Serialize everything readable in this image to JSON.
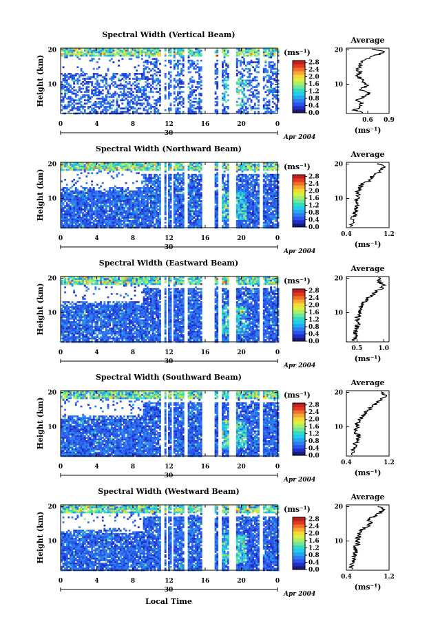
{
  "figure": {
    "xlabel": "Local Time",
    "colorbar_unit": "(ms⁻¹)",
    "avg_title": "Average",
    "avg_xlabel": "(ms⁻¹)",
    "date_day": "30",
    "date_month_year": "Apr 2004"
  },
  "colorbar": {
    "ticks": [
      "0.0",
      "0.4",
      "0.8",
      "1.2",
      "1.6",
      "2.0",
      "2.4",
      "2.8"
    ],
    "range": [
      0,
      2.9
    ],
    "colors": [
      "#1a1a6e",
      "#1f2fc8",
      "#2a55e8",
      "#2f7df0",
      "#27a7ee",
      "#22ccea",
      "#33dcc0",
      "#6fe69a",
      "#a8ee6a",
      "#d8f040",
      "#f4d838",
      "#f6a832",
      "#f07028",
      "#e03a22",
      "#c01e1e"
    ]
  },
  "chart_data": [
    {
      "type": "heatmap",
      "title": "Spectral Width (Vertical Beam)",
      "ylabel": "Height (km)",
      "xlim": [
        0,
        24
      ],
      "ylim": [
        1.5,
        20.5
      ],
      "x_ticks": [
        "0",
        "4",
        "8",
        "12",
        "16",
        "20",
        "0"
      ],
      "y_ticks": [
        "10",
        "20"
      ],
      "average": {
        "xlim": [
          0.3,
          0.9
        ],
        "x_ticks": [
          "0.6",
          "0.9"
        ],
        "y_ticks": [
          "10",
          "20"
        ],
        "profile": [
          [
            1.8,
            0.55
          ],
          [
            2.5,
            0.42
          ],
          [
            3.5,
            0.5
          ],
          [
            4.5,
            0.52
          ],
          [
            5.5,
            0.44
          ],
          [
            6.5,
            0.56
          ],
          [
            7.5,
            0.62
          ],
          [
            8.5,
            0.5
          ],
          [
            9.5,
            0.58
          ],
          [
            10.5,
            0.55
          ],
          [
            11.5,
            0.5
          ],
          [
            12.5,
            0.45
          ],
          [
            13.5,
            0.5
          ],
          [
            14.5,
            0.45
          ],
          [
            15.5,
            0.52
          ],
          [
            16.5,
            0.5
          ],
          [
            17.5,
            0.62
          ],
          [
            18.5,
            0.72
          ],
          [
            19.5,
            0.85
          ],
          [
            20.2,
            0.66
          ]
        ]
      }
    },
    {
      "type": "heatmap",
      "title": "Spectral Width (Northward Beam)",
      "ylabel": "Height (km)",
      "xlim": [
        0,
        24
      ],
      "ylim": [
        1.5,
        20.5
      ],
      "x_ticks": [
        "0",
        "4",
        "8",
        "12",
        "16",
        "20",
        "0"
      ],
      "y_ticks": [
        "10",
        "20"
      ],
      "average": {
        "xlim": [
          0.4,
          1.2
        ],
        "x_ticks": [
          "0.4",
          "1.2"
        ],
        "y_ticks": [
          "10",
          "20"
        ],
        "profile": [
          [
            1.8,
            0.48
          ],
          [
            3,
            0.5
          ],
          [
            4,
            0.52
          ],
          [
            5,
            0.55
          ],
          [
            6,
            0.56
          ],
          [
            7,
            0.58
          ],
          [
            8,
            0.6
          ],
          [
            9,
            0.58
          ],
          [
            10,
            0.6
          ],
          [
            11,
            0.62
          ],
          [
            12,
            0.6
          ],
          [
            13,
            0.64
          ],
          [
            14,
            0.68
          ],
          [
            15,
            0.82
          ],
          [
            16,
            0.85
          ],
          [
            17,
            0.95
          ],
          [
            18,
            1.05
          ],
          [
            19,
            1.1
          ],
          [
            20.2,
            1.0
          ]
        ]
      }
    },
    {
      "type": "heatmap",
      "title": "Spectral Width (Eastward Beam)",
      "ylabel": "Height (km)",
      "xlim": [
        0,
        24
      ],
      "ylim": [
        1.5,
        20.5
      ],
      "x_ticks": [
        "0",
        "4",
        "8",
        "12",
        "16",
        "20",
        "0"
      ],
      "y_ticks": [
        "10",
        "20"
      ],
      "average": {
        "xlim": [
          0.3,
          1.1
        ],
        "x_ticks": [
          "0.5",
          "1.0"
        ],
        "y_ticks": [
          "10",
          "20"
        ],
        "profile": [
          [
            1.8,
            0.45
          ],
          [
            3,
            0.46
          ],
          [
            4,
            0.47
          ],
          [
            5,
            0.48
          ],
          [
            6,
            0.5
          ],
          [
            7,
            0.52
          ],
          [
            8,
            0.5
          ],
          [
            9,
            0.52
          ],
          [
            10,
            0.56
          ],
          [
            11,
            0.55
          ],
          [
            12,
            0.58
          ],
          [
            13,
            0.62
          ],
          [
            14,
            0.7
          ],
          [
            15,
            0.78
          ],
          [
            16,
            0.85
          ],
          [
            17,
            0.95
          ],
          [
            18,
            1.0
          ],
          [
            19,
            0.92
          ],
          [
            20.2,
            0.9
          ]
        ]
      }
    },
    {
      "type": "heatmap",
      "title": "Spectral Width (Southward Beam)",
      "ylabel": "Height (km)",
      "xlim": [
        0,
        24
      ],
      "ylim": [
        1.5,
        20.5
      ],
      "x_ticks": [
        "0",
        "4",
        "8",
        "12",
        "16",
        "20",
        "0"
      ],
      "y_ticks": [
        "10",
        "20"
      ],
      "average": {
        "xlim": [
          0.4,
          1.2
        ],
        "x_ticks": [
          "0.4",
          "1.2"
        ],
        "y_ticks": [
          "10",
          "20"
        ],
        "profile": [
          [
            1.8,
            0.5
          ],
          [
            3,
            0.52
          ],
          [
            4,
            0.54
          ],
          [
            5,
            0.56
          ],
          [
            6,
            0.6
          ],
          [
            7,
            0.64
          ],
          [
            8,
            0.6
          ],
          [
            9,
            0.58
          ],
          [
            10,
            0.6
          ],
          [
            11,
            0.62
          ],
          [
            12,
            0.64
          ],
          [
            13,
            0.7
          ],
          [
            14,
            0.75
          ],
          [
            15,
            0.82
          ],
          [
            16,
            0.9
          ],
          [
            17,
            0.98
          ],
          [
            18,
            1.05
          ],
          [
            19,
            1.12
          ],
          [
            20.2,
            1.05
          ]
        ]
      }
    },
    {
      "type": "heatmap",
      "title": "Spectral Width (Westward Beam)",
      "ylabel": "Height (km)",
      "xlim": [
        0,
        24
      ],
      "ylim": [
        1.5,
        20.5
      ],
      "x_ticks": [
        "0",
        "4",
        "8",
        "12",
        "16",
        "20",
        "0"
      ],
      "y_ticks": [
        "10",
        "20"
      ],
      "average": {
        "xlim": [
          0.4,
          1.2
        ],
        "x_ticks": [
          "0.4",
          "1.2"
        ],
        "y_ticks": [
          "10",
          "20"
        ],
        "profile": [
          [
            1.8,
            0.48
          ],
          [
            3,
            0.5
          ],
          [
            4,
            0.52
          ],
          [
            5,
            0.54
          ],
          [
            6,
            0.55
          ],
          [
            7,
            0.57
          ],
          [
            8,
            0.56
          ],
          [
            9,
            0.6
          ],
          [
            10,
            0.6
          ],
          [
            11,
            0.62
          ],
          [
            12,
            0.64
          ],
          [
            13,
            0.68
          ],
          [
            14,
            0.75
          ],
          [
            15,
            0.88
          ],
          [
            16,
            0.8
          ],
          [
            17,
            0.9
          ],
          [
            18,
            1.02
          ],
          [
            19,
            1.08
          ],
          [
            20.2,
            1.0
          ]
        ]
      }
    }
  ]
}
